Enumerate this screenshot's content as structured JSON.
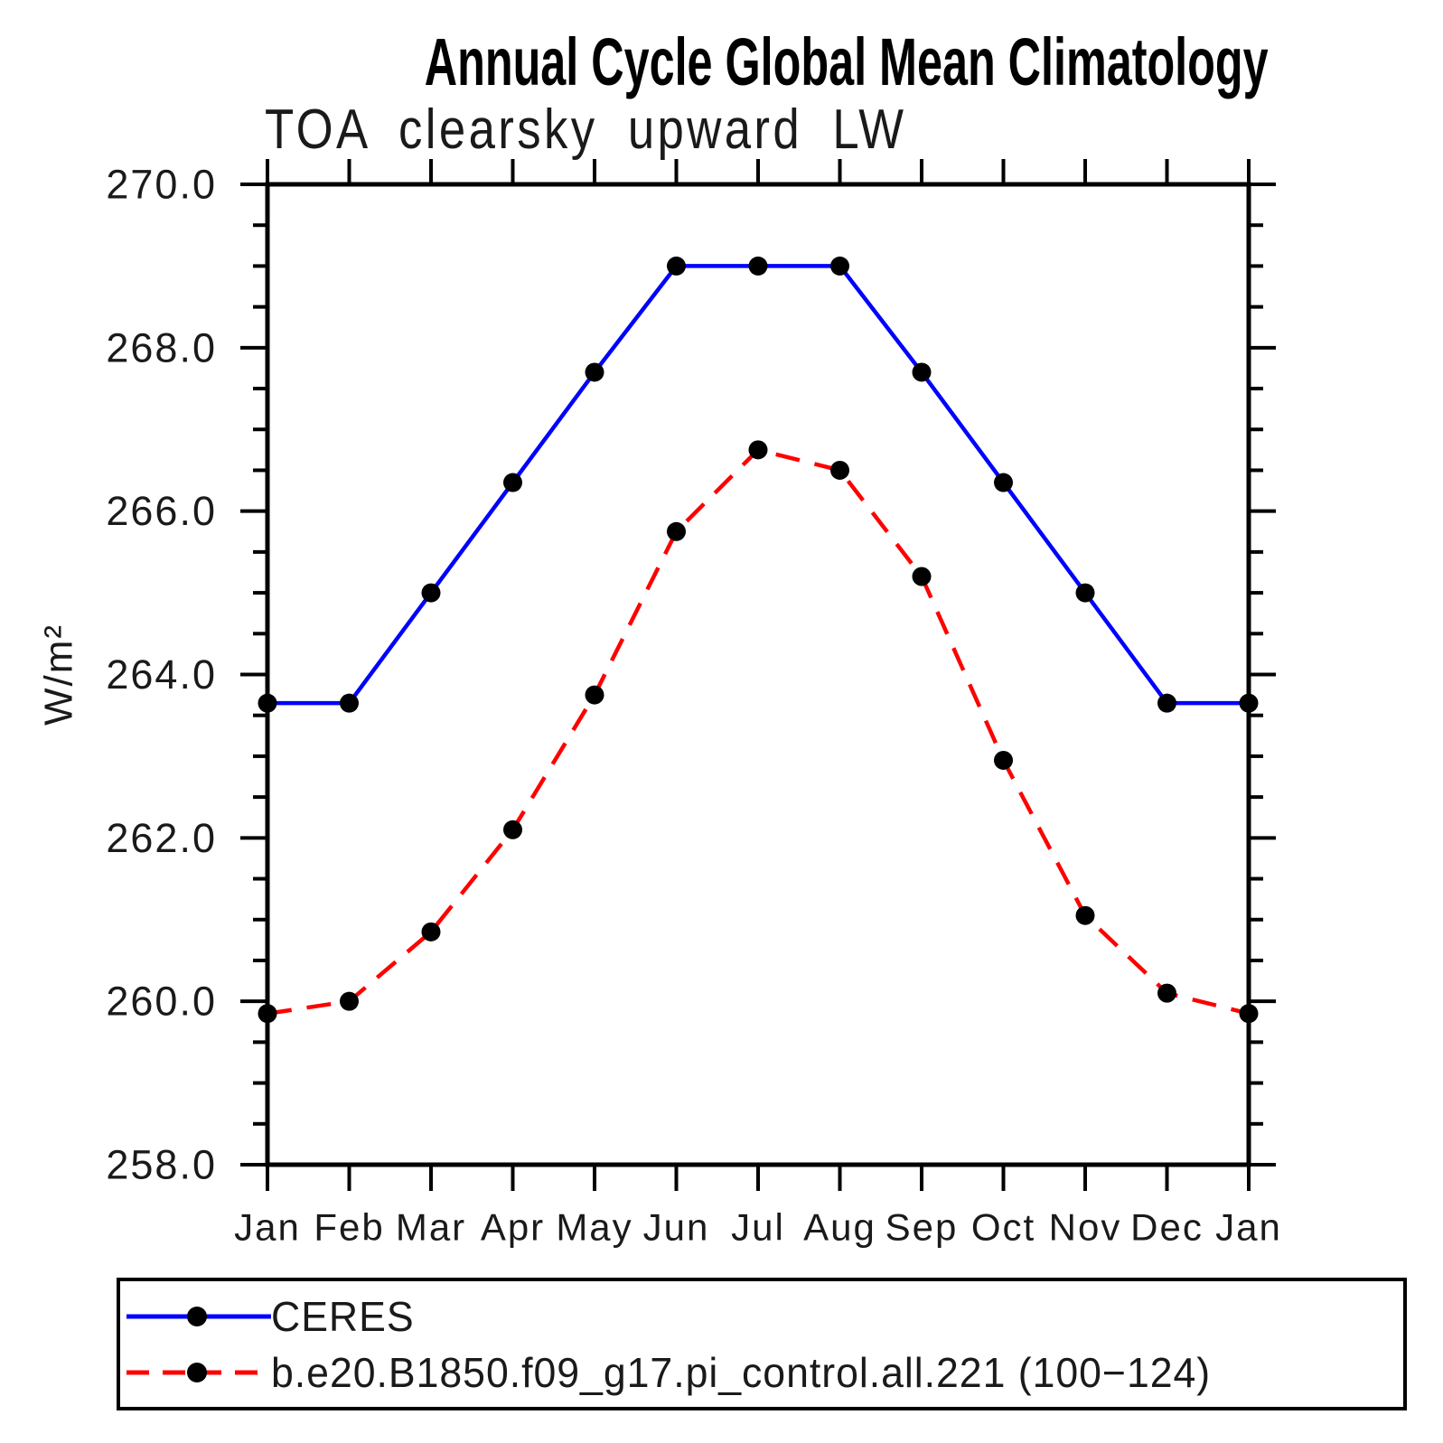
{
  "chart_data": {
    "type": "line",
    "title": "Annual Cycle Global Mean Climatology",
    "subtitle": "TOA clearsky upward LW",
    "ylabel": "W/m²",
    "x_categories": [
      "Jan",
      "Feb",
      "Mar",
      "Apr",
      "May",
      "Jun",
      "Jul",
      "Aug",
      "Sep",
      "Oct",
      "Nov",
      "Dec",
      "Jan"
    ],
    "ylim": [
      258.0,
      270.0
    ],
    "y_major_step": 2.0,
    "y_minor_step": 0.5,
    "y_tick_labels": [
      "258.0",
      "260.0",
      "262.0",
      "264.0",
      "266.0",
      "268.0",
      "270.0"
    ],
    "grid": false,
    "legend_position": "bottom",
    "series": [
      {
        "name": "CERES",
        "color": "#0000ff",
        "line_style": "solid",
        "marker": "filled-circle",
        "marker_color": "#000000",
        "values": [
          263.65,
          263.65,
          265.0,
          266.35,
          267.7,
          269.0,
          269.0,
          269.0,
          267.7,
          266.35,
          265.0,
          263.65,
          263.65
        ]
      },
      {
        "name": "b.e20.B1850.f09_g17.pi_control.all.221 (100−124)",
        "color": "#ff0000",
        "line_style": "dashed",
        "marker": "filled-circle",
        "marker_color": "#000000",
        "values": [
          259.85,
          260.0,
          260.85,
          262.1,
          263.75,
          265.75,
          266.75,
          266.5,
          265.2,
          262.95,
          261.05,
          260.1,
          259.85
        ]
      }
    ],
    "axis_color": "#000000"
  }
}
